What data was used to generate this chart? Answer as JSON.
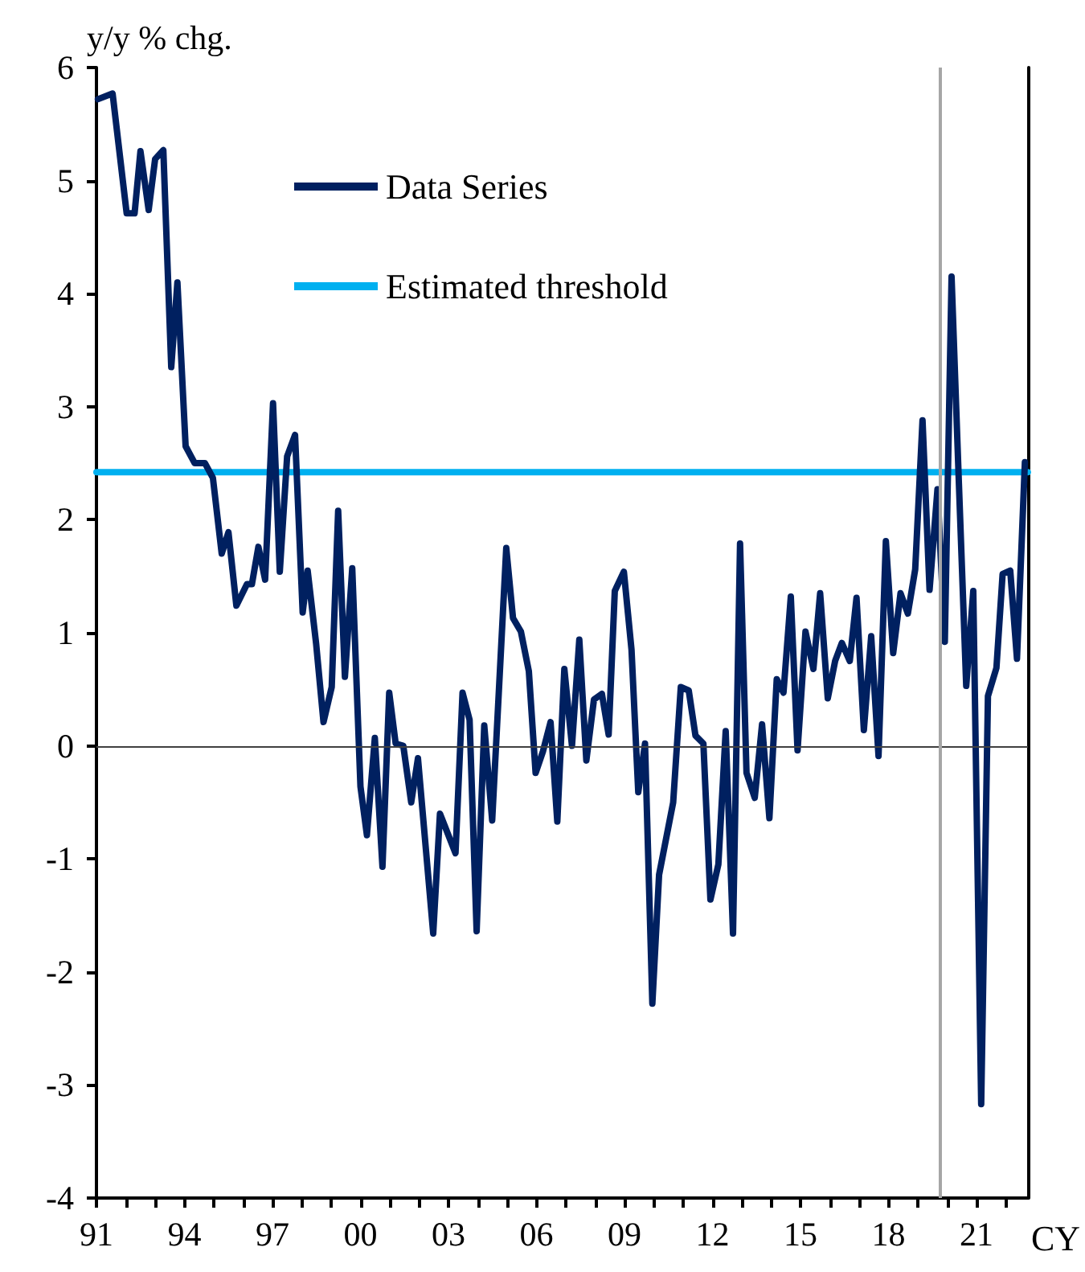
{
  "chart_data": {
    "type": "line",
    "xlabel": "CY",
    "ylabel": "y/y % chg.",
    "x": [
      1991.05,
      1991.55,
      1992.03,
      1992.3,
      1992.5,
      1992.78,
      1993.0,
      1993.28,
      1993.55,
      1993.76,
      1994.04,
      1994.35,
      1994.7,
      1994.97,
      1995.27,
      1995.5,
      1995.77,
      1996.13,
      1996.3,
      1996.52,
      1996.75,
      1997.02,
      1997.25,
      1997.5,
      1997.77,
      1998.03,
      1998.2,
      1998.49,
      1998.74,
      1999.02,
      1999.24,
      1999.47,
      1999.72,
      2000.0,
      2000.22,
      2000.49,
      2000.75,
      2000.98,
      2001.2,
      2001.46,
      2001.73,
      2001.96,
      2002.48,
      2002.71,
      2003.24,
      2003.48,
      2003.72,
      2003.96,
      2004.22,
      2004.49,
      2004.97,
      2005.2,
      2005.47,
      2005.74,
      2005.97,
      2006.22,
      2006.48,
      2006.71,
      2006.95,
      2007.21,
      2007.46,
      2007.7,
      2007.96,
      2008.23,
      2008.46,
      2008.67,
      2008.98,
      2009.24,
      2009.47,
      2009.7,
      2009.95,
      2010.18,
      2010.66,
      2010.92,
      2011.19,
      2011.42,
      2011.69,
      2011.93,
      2012.2,
      2012.45,
      2012.7,
      2012.94,
      2013.16,
      2013.44,
      2013.69,
      2013.94,
      2014.19,
      2014.42,
      2014.67,
      2014.9,
      2015.17,
      2015.44,
      2015.67,
      2015.93,
      2016.18,
      2016.41,
      2016.68,
      2016.91,
      2017.16,
      2017.41,
      2017.66,
      2017.91,
      2018.16,
      2018.41,
      2018.66,
      2018.91,
      2019.16,
      2019.4,
      2019.67,
      2019.92,
      2020.15,
      2020.4,
      2020.65,
      2020.89,
      2021.16,
      2021.39,
      2021.68,
      2021.89,
      2022.15,
      2022.38,
      2022.65
    ],
    "series": [
      {
        "name": "Data Series",
        "color": "#002060",
        "values": [
          5.72,
          5.77,
          4.71,
          4.71,
          5.26,
          4.74,
          5.19,
          5.27,
          3.35,
          4.1,
          2.65,
          2.5,
          2.5,
          2.37,
          1.7,
          1.89,
          1.24,
          1.43,
          1.43,
          1.76,
          1.47,
          3.03,
          1.54,
          2.56,
          2.75,
          1.18,
          1.55,
          0.9,
          0.21,
          0.52,
          2.08,
          0.61,
          1.57,
          -0.36,
          -0.79,
          0.07,
          -1.07,
          0.47,
          0.02,
          0.0,
          -0.5,
          -0.11,
          -1.66,
          -0.6,
          -0.95,
          0.47,
          0.23,
          -1.64,
          0.18,
          -0.66,
          1.75,
          1.13,
          1.01,
          0.66,
          -0.24,
          -0.05,
          0.21,
          -0.67,
          0.68,
          0.0,
          0.94,
          -0.13,
          0.41,
          0.46,
          0.1,
          1.37,
          1.54,
          0.85,
          -0.41,
          0.02,
          -2.28,
          -1.14,
          -0.5,
          0.52,
          0.49,
          0.09,
          0.02,
          -1.36,
          -1.05,
          0.13,
          -1.66,
          1.79,
          -0.24,
          -0.46,
          0.19,
          -0.64,
          0.59,
          0.47,
          1.32,
          -0.04,
          1.01,
          0.68,
          1.35,
          0.42,
          0.75,
          0.91,
          0.75,
          1.31,
          0.14,
          0.97,
          -0.09,
          1.81,
          0.82,
          1.35,
          1.17,
          1.56,
          2.88,
          1.38,
          2.27,
          0.92,
          4.15,
          2.32,
          0.53,
          1.37,
          -3.17,
          0.44,
          0.69,
          1.52,
          1.55,
          0.77,
          2.51
        ]
      },
      {
        "name": "Estimated threshold",
        "color": "#00b0f0",
        "x": [
          1991,
          2022.75
        ],
        "values": [
          2.42,
          2.42
        ]
      }
    ],
    "xlim": [
      1991,
      2022.75
    ],
    "xticks": [
      {
        "value": 1991,
        "label": "91"
      },
      {
        "value": 1992,
        "label": null
      },
      {
        "value": 1993,
        "label": null
      },
      {
        "value": 1994,
        "label": "94"
      },
      {
        "value": 1995,
        "label": null
      },
      {
        "value": 1996,
        "label": null
      },
      {
        "value": 1997,
        "label": "97"
      },
      {
        "value": 1998,
        "label": null
      },
      {
        "value": 1999,
        "label": null
      },
      {
        "value": 2000,
        "label": "00"
      },
      {
        "value": 2001,
        "label": null
      },
      {
        "value": 2002,
        "label": null
      },
      {
        "value": 2003,
        "label": "03"
      },
      {
        "value": 2004,
        "label": null
      },
      {
        "value": 2005,
        "label": null
      },
      {
        "value": 2006,
        "label": "06"
      },
      {
        "value": 2007,
        "label": null
      },
      {
        "value": 2008,
        "label": null
      },
      {
        "value": 2009,
        "label": "09"
      },
      {
        "value": 2010,
        "label": null
      },
      {
        "value": 2011,
        "label": null
      },
      {
        "value": 2012,
        "label": "12"
      },
      {
        "value": 2013,
        "label": null
      },
      {
        "value": 2014,
        "label": null
      },
      {
        "value": 2015,
        "label": "15"
      },
      {
        "value": 2016,
        "label": null
      },
      {
        "value": 2017,
        "label": null
      },
      {
        "value": 2018,
        "label": "18"
      },
      {
        "value": 2019,
        "label": null
      },
      {
        "value": 2020,
        "label": null
      },
      {
        "value": 2021,
        "label": "21"
      },
      {
        "value": 2022,
        "label": null
      }
    ],
    "ylim": [
      -4,
      6
    ],
    "yticks": [
      -4,
      -3,
      -2,
      -1,
      0,
      1,
      2,
      3,
      4,
      5,
      6
    ],
    "ref_lines": [
      {
        "axis": "y",
        "value": 0,
        "color": "#404040"
      },
      {
        "axis": "x",
        "value": 2019.75,
        "color": "#a6a6a6"
      }
    ],
    "grid": false,
    "legend": "top left",
    "marker": "none",
    "line_style": "solid"
  }
}
